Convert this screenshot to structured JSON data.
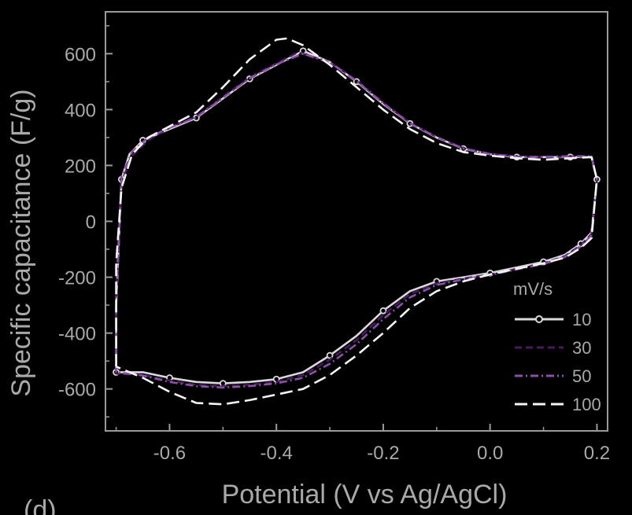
{
  "chart_data": {
    "type": "line",
    "panel_label": "(d)",
    "xlabel": "Potential (V vs Ag/AgCl)",
    "ylabel": "Specific capacitance (F/g)",
    "xlim": [
      -0.72,
      0.22
    ],
    "ylim": [
      -750,
      750
    ],
    "x_ticks": [
      -0.6,
      -0.4,
      -0.2,
      0.0,
      0.2
    ],
    "x_tick_labels": [
      "-0.6",
      "-0.4",
      "-0.2",
      "0.0",
      "0.2"
    ],
    "y_ticks": [
      -600,
      -400,
      -200,
      0,
      200,
      400,
      600
    ],
    "y_tick_labels": [
      "-600",
      "-400",
      "-200",
      "0",
      "200",
      "400",
      "600"
    ],
    "grid": false,
    "legend": {
      "title": "mV/s",
      "placement": "bottom-right"
    },
    "series": [
      {
        "name": "10",
        "color": "#d9d9d9",
        "dash": "solid",
        "marker": "circle",
        "points": [
          [
            -0.7,
            -540
          ],
          [
            -0.7,
            -300
          ],
          [
            -0.69,
            150
          ],
          [
            -0.675,
            240
          ],
          [
            -0.65,
            290
          ],
          [
            -0.6,
            330
          ],
          [
            -0.55,
            370
          ],
          [
            -0.5,
            440
          ],
          [
            -0.45,
            510
          ],
          [
            -0.4,
            560
          ],
          [
            -0.35,
            610
          ],
          [
            -0.3,
            570
          ],
          [
            -0.25,
            500
          ],
          [
            -0.2,
            420
          ],
          [
            -0.15,
            350
          ],
          [
            -0.1,
            300
          ],
          [
            -0.05,
            260
          ],
          [
            0.0,
            240
          ],
          [
            0.05,
            230
          ],
          [
            0.1,
            230
          ],
          [
            0.15,
            230
          ],
          [
            0.19,
            230
          ],
          [
            0.2,
            150
          ],
          [
            0.19,
            -40
          ],
          [
            0.17,
            -80
          ],
          [
            0.14,
            -120
          ],
          [
            0.1,
            -145
          ],
          [
            0.05,
            -165
          ],
          [
            0.0,
            -185
          ],
          [
            -0.05,
            -200
          ],
          [
            -0.1,
            -215
          ],
          [
            -0.15,
            -250
          ],
          [
            -0.2,
            -320
          ],
          [
            -0.25,
            -410
          ],
          [
            -0.3,
            -480
          ],
          [
            -0.35,
            -540
          ],
          [
            -0.4,
            -565
          ],
          [
            -0.45,
            -575
          ],
          [
            -0.5,
            -580
          ],
          [
            -0.55,
            -575
          ],
          [
            -0.6,
            -560
          ],
          [
            -0.65,
            -540
          ],
          [
            -0.7,
            -540
          ]
        ]
      },
      {
        "name": "30",
        "color": "#4a1a5c",
        "dash": "dash",
        "marker": "none",
        "points": [
          [
            -0.7,
            -545
          ],
          [
            -0.7,
            -280
          ],
          [
            -0.69,
            140
          ],
          [
            -0.67,
            235
          ],
          [
            -0.64,
            290
          ],
          [
            -0.6,
            335
          ],
          [
            -0.55,
            375
          ],
          [
            -0.5,
            445
          ],
          [
            -0.45,
            515
          ],
          [
            -0.4,
            565
          ],
          [
            -0.36,
            605
          ],
          [
            -0.3,
            570
          ],
          [
            -0.25,
            505
          ],
          [
            -0.2,
            425
          ],
          [
            -0.15,
            352
          ],
          [
            -0.1,
            302
          ],
          [
            -0.05,
            262
          ],
          [
            0.0,
            242
          ],
          [
            0.05,
            232
          ],
          [
            0.1,
            230
          ],
          [
            0.15,
            232
          ],
          [
            0.19,
            232
          ],
          [
            0.2,
            150
          ],
          [
            0.19,
            -45
          ],
          [
            0.17,
            -85
          ],
          [
            0.14,
            -125
          ],
          [
            0.1,
            -150
          ],
          [
            0.05,
            -170
          ],
          [
            0.0,
            -190
          ],
          [
            -0.05,
            -205
          ],
          [
            -0.1,
            -222
          ],
          [
            -0.15,
            -260
          ],
          [
            -0.2,
            -335
          ],
          [
            -0.25,
            -425
          ],
          [
            -0.3,
            -495
          ],
          [
            -0.35,
            -550
          ],
          [
            -0.4,
            -575
          ],
          [
            -0.45,
            -585
          ],
          [
            -0.5,
            -590
          ],
          [
            -0.55,
            -585
          ],
          [
            -0.6,
            -570
          ],
          [
            -0.65,
            -550
          ],
          [
            -0.7,
            -545
          ]
        ]
      },
      {
        "name": "50",
        "color": "#8a4fa8",
        "dash": "dashdot",
        "marker": "none",
        "points": [
          [
            -0.7,
            -540
          ],
          [
            -0.7,
            -260
          ],
          [
            -0.69,
            160
          ],
          [
            -0.67,
            250
          ],
          [
            -0.64,
            300
          ],
          [
            -0.6,
            335
          ],
          [
            -0.55,
            372
          ],
          [
            -0.5,
            442
          ],
          [
            -0.45,
            512
          ],
          [
            -0.4,
            562
          ],
          [
            -0.35,
            600
          ],
          [
            -0.3,
            568
          ],
          [
            -0.25,
            502
          ],
          [
            -0.2,
            422
          ],
          [
            -0.15,
            351
          ],
          [
            -0.1,
            301
          ],
          [
            -0.05,
            261
          ],
          [
            0.0,
            241
          ],
          [
            0.05,
            231
          ],
          [
            0.1,
            231
          ],
          [
            0.15,
            233
          ],
          [
            0.19,
            233
          ],
          [
            0.2,
            150
          ],
          [
            0.19,
            -50
          ],
          [
            0.17,
            -90
          ],
          [
            0.14,
            -128
          ],
          [
            0.1,
            -153
          ],
          [
            0.05,
            -172
          ],
          [
            0.0,
            -192
          ],
          [
            -0.05,
            -208
          ],
          [
            -0.1,
            -228
          ],
          [
            -0.15,
            -272
          ],
          [
            -0.2,
            -350
          ],
          [
            -0.25,
            -440
          ],
          [
            -0.3,
            -510
          ],
          [
            -0.35,
            -560
          ],
          [
            -0.4,
            -580
          ],
          [
            -0.45,
            -590
          ],
          [
            -0.5,
            -595
          ],
          [
            -0.55,
            -590
          ],
          [
            -0.6,
            -575
          ],
          [
            -0.65,
            -552
          ],
          [
            -0.7,
            -540
          ]
        ]
      },
      {
        "name": "100",
        "color": "#f5f5f5",
        "dash": "longdash",
        "marker": "none",
        "points": [
          [
            -0.7,
            -520
          ],
          [
            -0.7,
            -150
          ],
          [
            -0.69,
            120
          ],
          [
            -0.67,
            240
          ],
          [
            -0.64,
            300
          ],
          [
            -0.6,
            340
          ],
          [
            -0.55,
            390
          ],
          [
            -0.5,
            480
          ],
          [
            -0.45,
            580
          ],
          [
            -0.4,
            650
          ],
          [
            -0.38,
            655
          ],
          [
            -0.35,
            630
          ],
          [
            -0.3,
            560
          ],
          [
            -0.25,
            480
          ],
          [
            -0.2,
            400
          ],
          [
            -0.15,
            330
          ],
          [
            -0.1,
            280
          ],
          [
            -0.05,
            248
          ],
          [
            0.0,
            235
          ],
          [
            0.05,
            226
          ],
          [
            0.1,
            220
          ],
          [
            0.15,
            226
          ],
          [
            0.19,
            230
          ],
          [
            0.2,
            150
          ],
          [
            0.19,
            -60
          ],
          [
            0.17,
            -95
          ],
          [
            0.14,
            -130
          ],
          [
            0.1,
            -150
          ],
          [
            0.05,
            -170
          ],
          [
            0.0,
            -190
          ],
          [
            -0.05,
            -215
          ],
          [
            -0.1,
            -250
          ],
          [
            -0.15,
            -310
          ],
          [
            -0.2,
            -400
          ],
          [
            -0.25,
            -480
          ],
          [
            -0.3,
            -550
          ],
          [
            -0.35,
            -600
          ],
          [
            -0.4,
            -620
          ],
          [
            -0.45,
            -640
          ],
          [
            -0.5,
            -655
          ],
          [
            -0.55,
            -650
          ],
          [
            -0.6,
            -610
          ],
          [
            -0.65,
            -560
          ],
          [
            -0.7,
            -520
          ]
        ]
      }
    ]
  }
}
